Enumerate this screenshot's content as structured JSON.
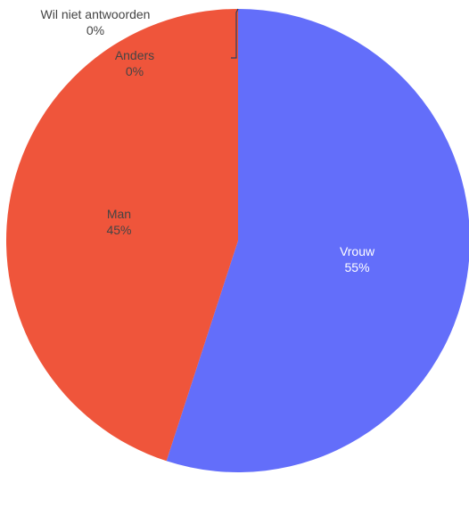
{
  "chart_data": {
    "type": "pie",
    "slices": [
      {
        "label": "Vrouw",
        "value": 55,
        "percent_label": "55%",
        "color": "#636efa",
        "label_color": "#ffffff"
      },
      {
        "label": "Man",
        "value": 45,
        "percent_label": "45%",
        "color": "#ef553b",
        "label_color": "#444444"
      },
      {
        "label": "Wil niet antwoorden",
        "value": 0,
        "percent_label": "0%",
        "color": "#00cc96",
        "label_color": "#444444"
      },
      {
        "label": "Anders",
        "value": 0,
        "percent_label": "0%",
        "color": "#ab63fa",
        "label_color": "#444444"
      }
    ],
    "title": "",
    "legend": "none"
  }
}
